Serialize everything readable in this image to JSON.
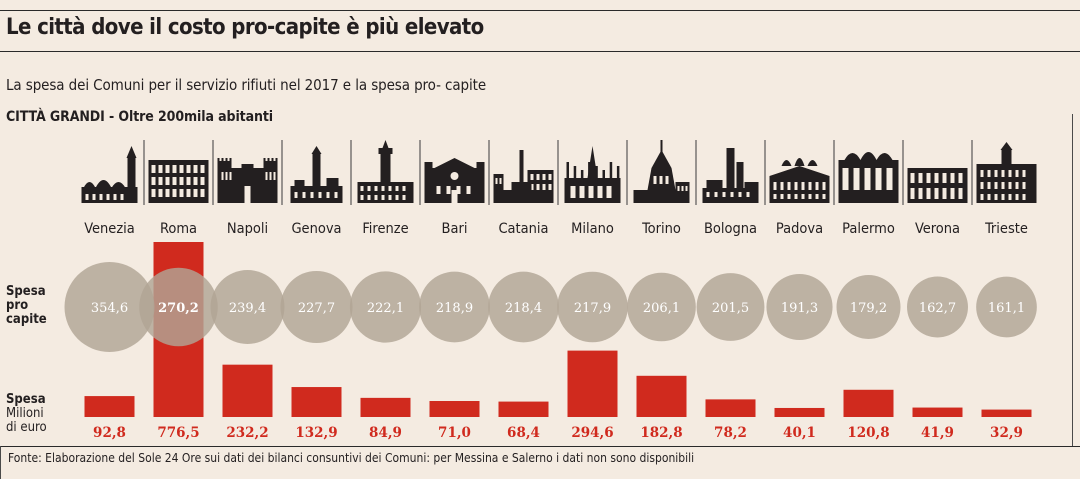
{
  "header": {
    "title": "Le città dove il costo pro-capite è più elevato",
    "subtitle": "La spesa dei Comuni per il servizio rifiuti nel 2017 e la spesa pro- capite",
    "section": "CITTÀ GRANDI - Oltre 200mila abitanti"
  },
  "labels": {
    "per_capita_1": "Spesa",
    "per_capita_2": "pro",
    "per_capita_3": "capite",
    "total_1": "Spesa",
    "total_2": "Milioni",
    "total_3": "di euro"
  },
  "source": "Fonte: Elaborazione del Sole 24 Ore sui dati dei bilanci consuntivi dei Comuni: per Messina e Salerno i dati non sono disponibili",
  "colors": {
    "background": "#f4ebe1",
    "circle": "#b1a595",
    "bar": "#d02a1e",
    "icon": "#231f20"
  },
  "chart_data": {
    "type": "bar",
    "categories": [
      "Venezia",
      "Roma",
      "Napoli",
      "Genova",
      "Firenze",
      "Bari",
      "Catania",
      "Milano",
      "Torino",
      "Bologna",
      "Padova",
      "Palermo",
      "Verona",
      "Trieste"
    ],
    "icons": [
      "venezia-skyline-icon",
      "roma-colosseum-icon",
      "napoli-castle-icon",
      "genova-lantern-icon",
      "firenze-palazzo-icon",
      "bari-basilica-icon",
      "catania-elephant-icon",
      "milano-duomo-icon",
      "torino-mole-icon",
      "bologna-towers-icon",
      "padova-basilica-icon",
      "palermo-cathedral-icon",
      "verona-arena-icon",
      "trieste-municipio-icon"
    ],
    "series": [
      {
        "name": "Spesa pro capite",
        "values": [
          354.6,
          270.2,
          239.4,
          227.7,
          222.1,
          218.9,
          218.4,
          217.9,
          206.1,
          201.5,
          191.3,
          179.2,
          162.7,
          161.1
        ]
      },
      {
        "name": "Spesa Milioni di euro",
        "values": [
          92.8,
          776.5,
          232.2,
          132.9,
          84.9,
          71.0,
          68.4,
          294.6,
          182.8,
          78.2,
          40.1,
          120.8,
          41.9,
          32.9
        ]
      }
    ],
    "per_capita_labels": [
      "354,6",
      "270,2",
      "239,4",
      "227,7",
      "222,1",
      "218,9",
      "218,4",
      "217,9",
      "206,1",
      "201,5",
      "191,3",
      "179,2",
      "162,7",
      "161,1"
    ],
    "total_labels": [
      "92,8",
      "776,5",
      "232,2",
      "132,9",
      "84,9",
      "71,0",
      "68,4",
      "294,6",
      "182,8",
      "78,2",
      "40,1",
      "120,8",
      "41,9",
      "32,9"
    ],
    "highlight": "Roma",
    "grid": false,
    "legend": "none"
  }
}
